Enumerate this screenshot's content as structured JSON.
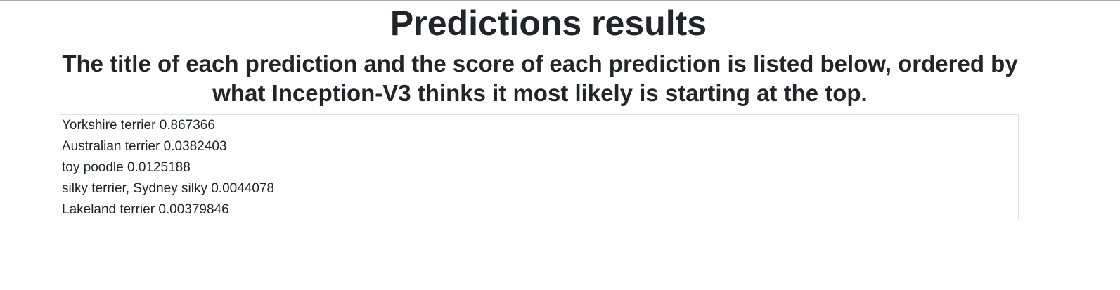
{
  "page": {
    "title": "Predictions results",
    "subtitle": "The title of each prediction and the score of each prediction is listed below, ordered by what Inception-V3 thinks it most likely is starting at the top."
  },
  "predictions": [
    {
      "label": "Yorkshire terrier",
      "score": "0.867366"
    },
    {
      "label": "Australian terrier",
      "score": "0.0382403"
    },
    {
      "label": "toy poodle",
      "score": "0.0125188"
    },
    {
      "label": "silky terrier, Sydney silky",
      "score": "0.0044078"
    },
    {
      "label": "Lakeland terrier",
      "score": "0.00379846"
    }
  ]
}
